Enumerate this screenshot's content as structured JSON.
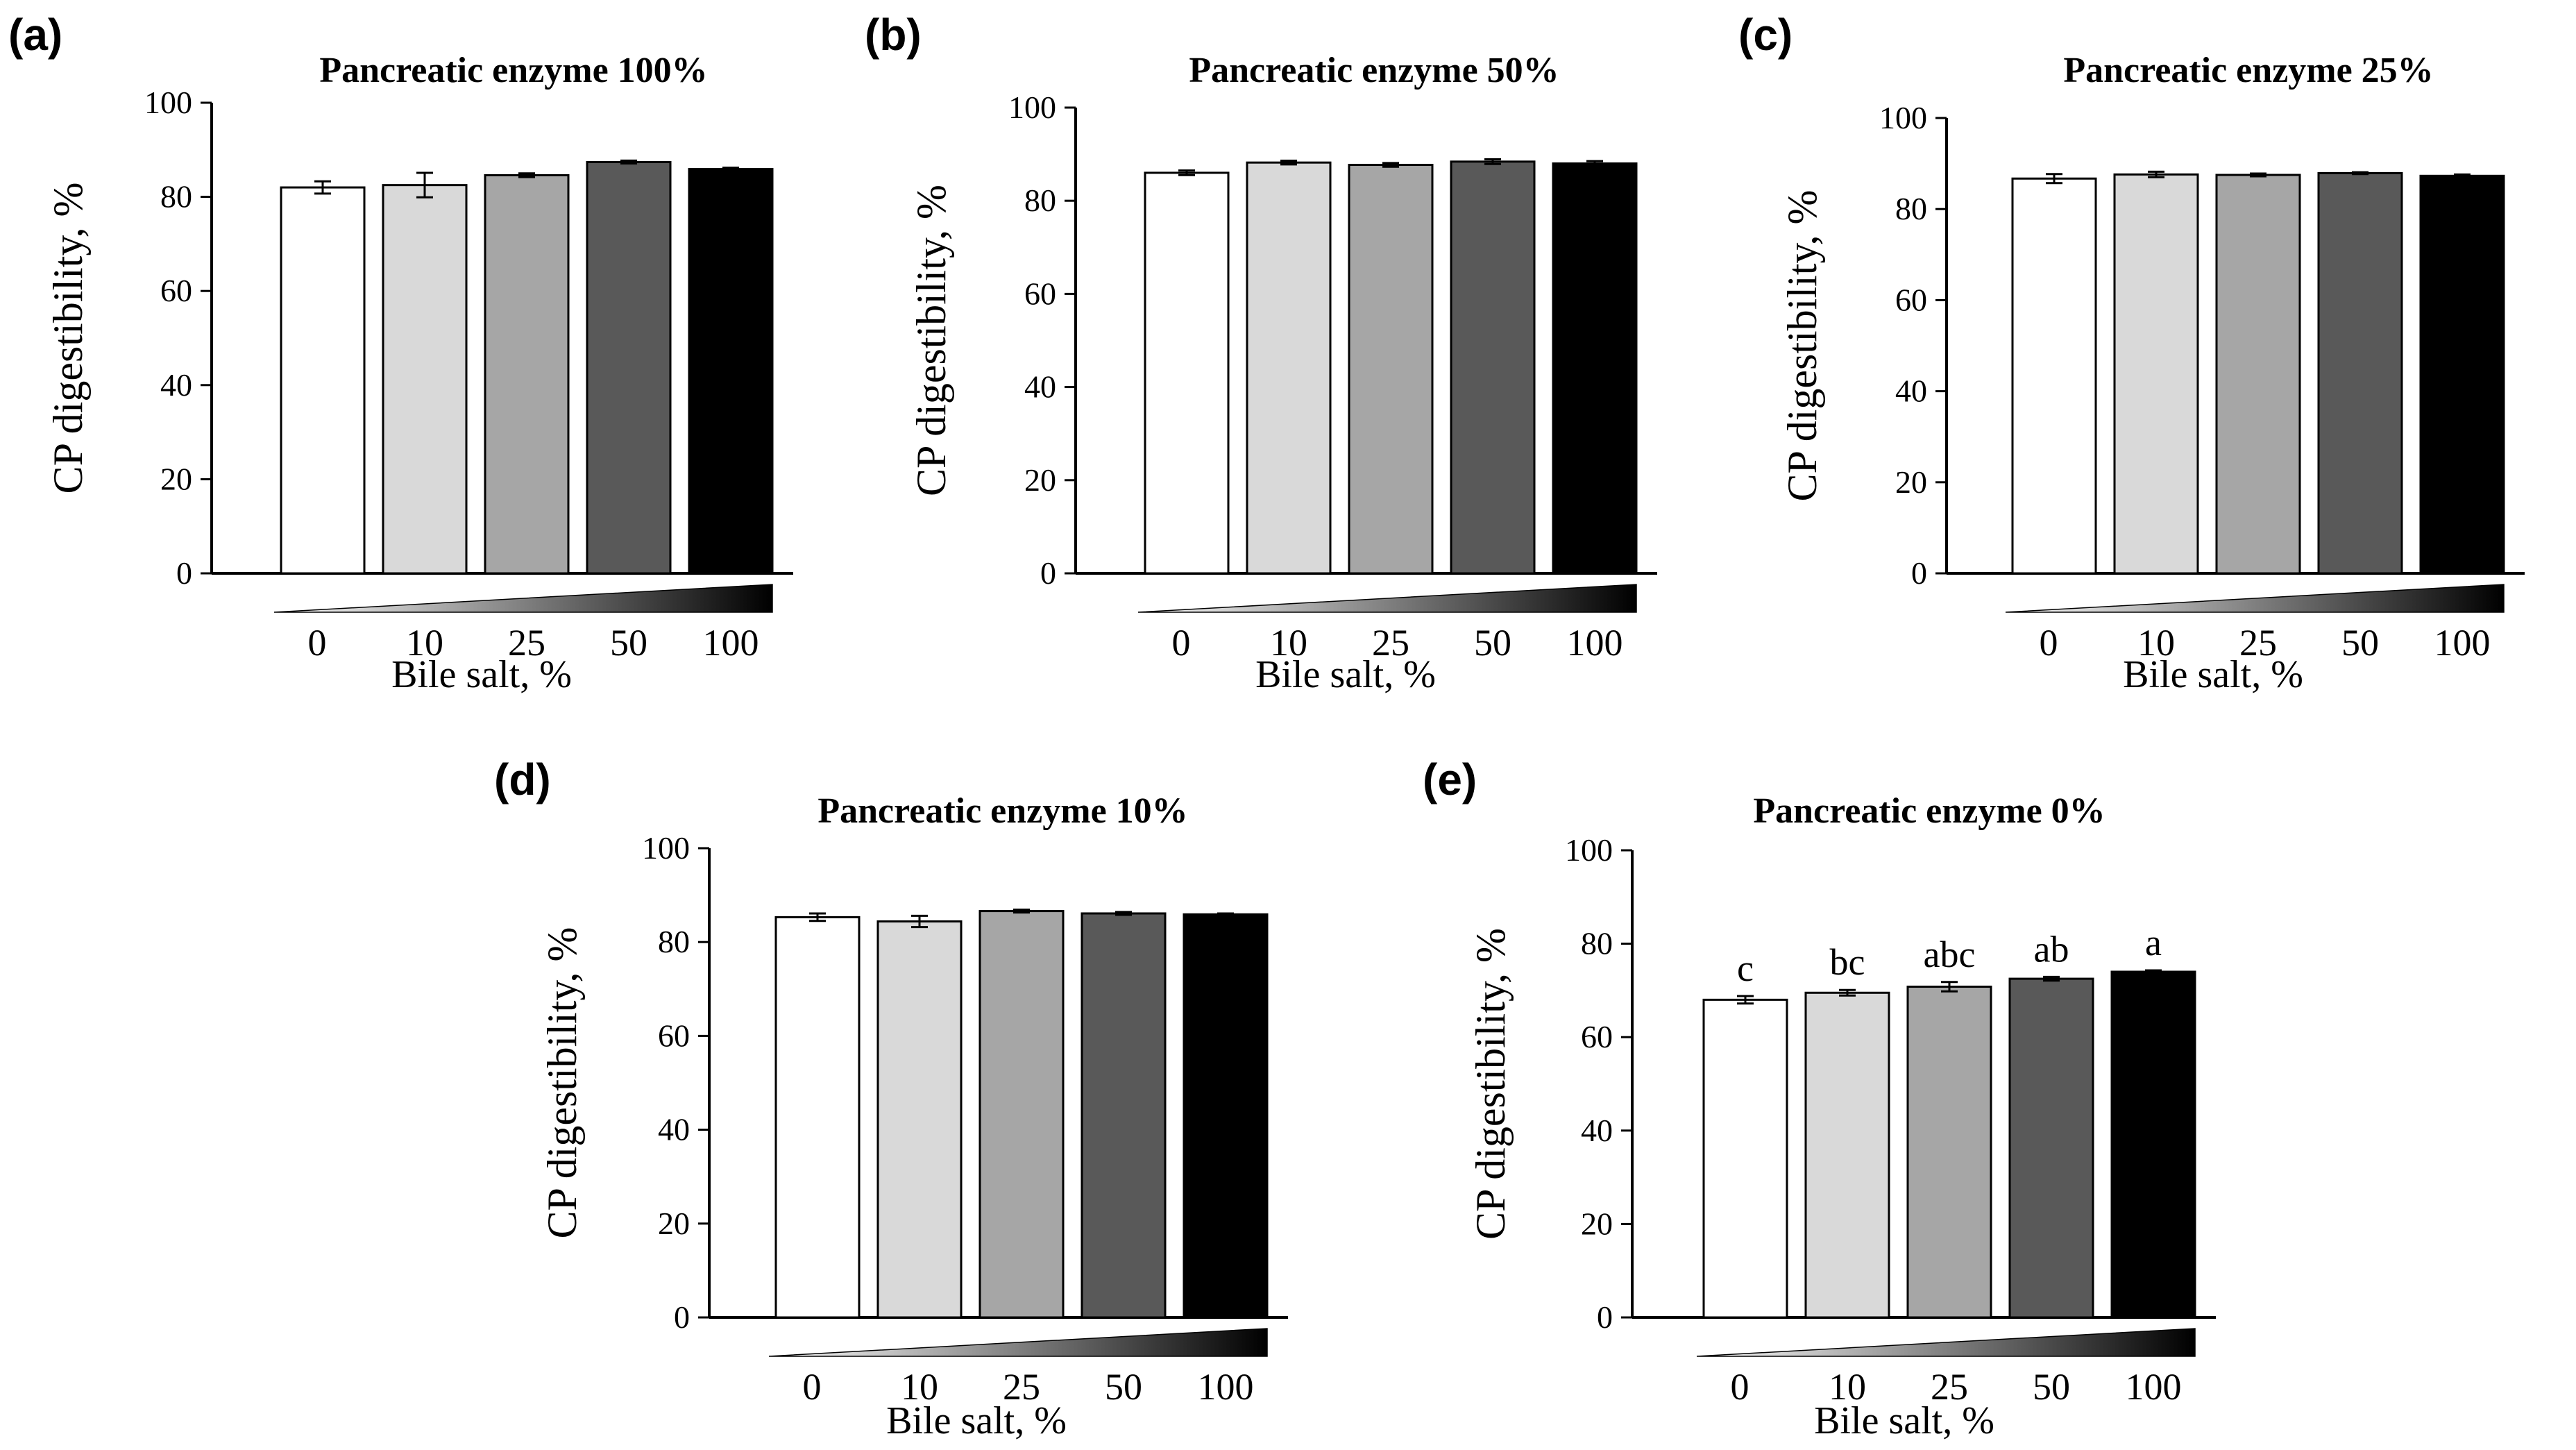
{
  "chart_data": [
    {
      "panel": "(a)",
      "type": "bar",
      "title": "Pancreatic enzyme 100%",
      "xlabel": "Bile salt, %",
      "ylabel": "CP digestibility, %",
      "ylim": [
        0,
        100
      ],
      "yticks": [
        "0",
        "20",
        "40",
        "60",
        "80",
        "100"
      ],
      "categories": [
        "0",
        "10",
        "25",
        "50",
        "100"
      ],
      "values": [
        82,
        82.5,
        84.6,
        87.4,
        85.9
      ],
      "errors": [
        1.3,
        2.6,
        0.4,
        0.3,
        0.3
      ],
      "sig_letters": [],
      "colors": [
        "#ffffff",
        "#d9d9d9",
        "#a6a6a6",
        "#595959",
        "#000000"
      ]
    },
    {
      "panel": "(b)",
      "type": "bar",
      "title": "Pancreatic enzyme 50%",
      "xlabel": "Bile salt, %",
      "ylabel": "CP digestibility, %",
      "ylim": [
        0,
        100
      ],
      "yticks": [
        "0",
        "20",
        "40",
        "60",
        "80",
        "100"
      ],
      "categories": [
        "0",
        "10",
        "25",
        "50",
        "100"
      ],
      "values": [
        86,
        88.2,
        87.7,
        88.4,
        88
      ],
      "errors": [
        0.5,
        0.4,
        0.4,
        0.5,
        0.5
      ],
      "sig_letters": [],
      "colors": [
        "#ffffff",
        "#d9d9d9",
        "#a6a6a6",
        "#595959",
        "#000000"
      ]
    },
    {
      "panel": "(c)",
      "type": "bar",
      "title": "Pancreatic enzyme 25%",
      "xlabel": "Bile salt, %",
      "ylabel": "CP digestibility, %",
      "ylim": [
        0,
        100
      ],
      "yticks": [
        "0",
        "20",
        "40",
        "60",
        "80",
        "100"
      ],
      "categories": [
        "0",
        "10",
        "25",
        "50",
        "100"
      ],
      "values": [
        86.7,
        87.6,
        87.5,
        87.9,
        87.3
      ],
      "errors": [
        1.0,
        0.6,
        0.3,
        0.2,
        0.3
      ],
      "sig_letters": [],
      "colors": [
        "#ffffff",
        "#d9d9d9",
        "#a6a6a6",
        "#595959",
        "#000000"
      ]
    },
    {
      "panel": "(d)",
      "type": "bar",
      "title": "Pancreatic enzyme 10%",
      "xlabel": "Bile salt, %",
      "ylabel": "CP digestibility, %",
      "ylim": [
        0,
        100
      ],
      "yticks": [
        "0",
        "20",
        "40",
        "60",
        "80",
        "100"
      ],
      "categories": [
        "0",
        "10",
        "25",
        "50",
        "100"
      ],
      "values": [
        85.3,
        84.4,
        86.6,
        86.1,
        85.9
      ],
      "errors": [
        0.8,
        1.2,
        0.3,
        0.3,
        0.2
      ],
      "sig_letters": [],
      "colors": [
        "#ffffff",
        "#d9d9d9",
        "#a6a6a6",
        "#595959",
        "#000000"
      ]
    },
    {
      "panel": "(e)",
      "type": "bar",
      "title": "Pancreatic enzyme 0%",
      "xlabel": "Bile salt, %",
      "ylabel": "CP digestibility, %",
      "ylim": [
        0,
        100
      ],
      "yticks": [
        "0",
        "20",
        "40",
        "60",
        "80",
        "100"
      ],
      "categories": [
        "0",
        "10",
        "25",
        "50",
        "100"
      ],
      "values": [
        68,
        69.5,
        70.8,
        72.5,
        74
      ],
      "errors": [
        0.8,
        0.6,
        1.0,
        0.4,
        0.3
      ],
      "sig_letters": [
        "c",
        "bc",
        "abc",
        "ab",
        "a"
      ],
      "colors": [
        "#ffffff",
        "#d9d9d9",
        "#a6a6a6",
        "#595959",
        "#000000"
      ]
    }
  ]
}
